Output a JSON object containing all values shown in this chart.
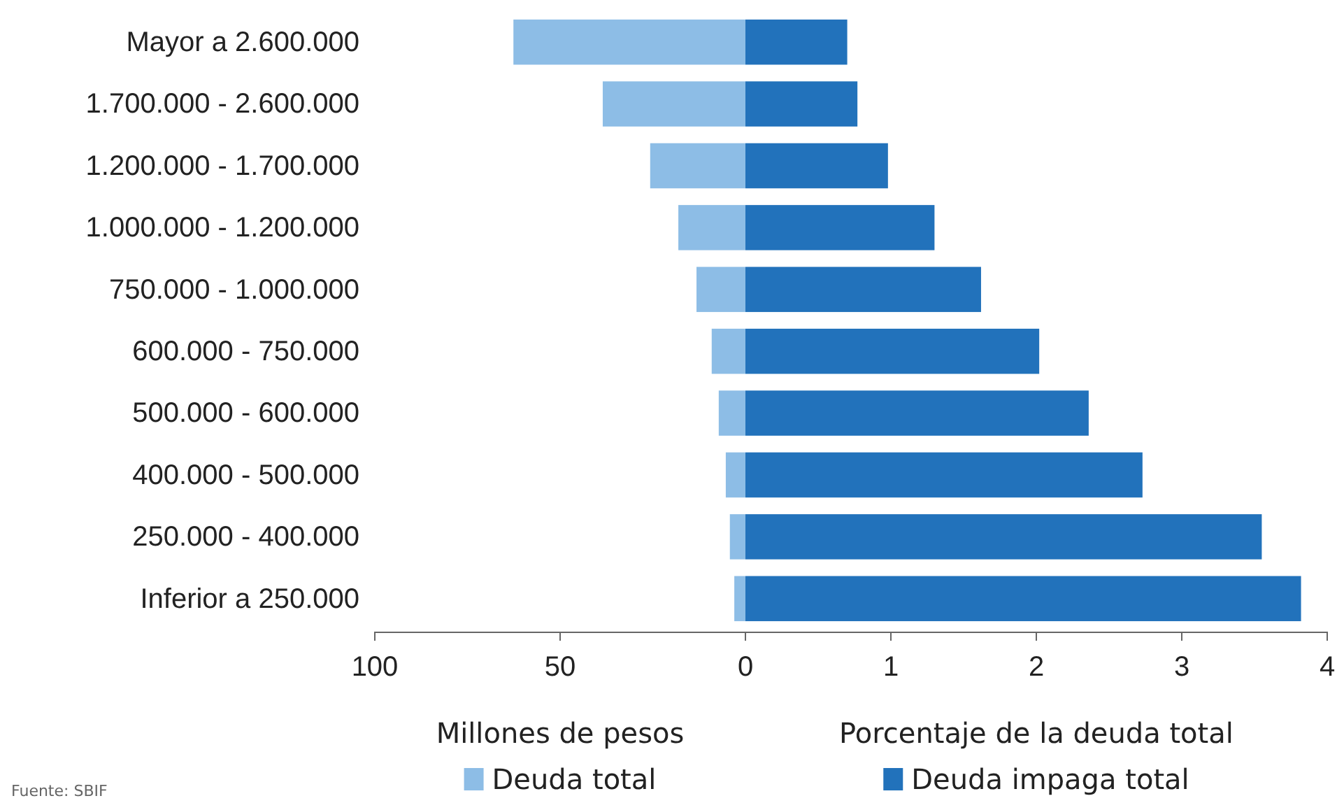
{
  "chart_data": [
    {
      "type": "bar",
      "orientation": "horizontal",
      "categories": [
        "Mayor a 2.600.000",
        "1.700.000 - 2.600.000",
        "1.200.000 - 1.700.000",
        "1.000.000 - 1.200.000",
        "750.000 - 1.000.000",
        "600.000 - 750.000",
        "500.000 - 600.000",
        "400.000 - 500.000",
        "250.000 - 400.000",
        "Inferior a 250.000"
      ],
      "series": [
        {
          "name": "Deuda total",
          "color": "#8dbde6",
          "values": [
            62.6,
            38.5,
            25.7,
            18.1,
            13.2,
            9.1,
            7.2,
            5.3,
            4.2,
            3.0
          ]
        }
      ],
      "xlim": [
        100,
        0
      ],
      "xticks": [
        100,
        50,
        {
          "value": 0,
          "label": null
        }
      ],
      "xlabel": "Millones de pesos",
      "legend": "bottom",
      "annotations": [
        "Fuente: SBIF"
      ]
    },
    {
      "type": "bar",
      "orientation": "horizontal",
      "categories": [
        null,
        null,
        null,
        null,
        null,
        null,
        null,
        null,
        null,
        null
      ],
      "series": [
        {
          "name": "Deuda impaga total",
          "color": "#2272bb",
          "values": [
            0.7,
            0.77,
            0.98,
            1.3,
            1.62,
            2.02,
            2.36,
            2.73,
            3.55,
            3.82
          ]
        }
      ],
      "xlim": [
        0,
        4
      ],
      "xticks": [
        0,
        1,
        2,
        3,
        4
      ],
      "xlabel": "Porcentaje de la deuda total",
      "legend": "bottom",
      "tick_labels": "x"
    }
  ]
}
